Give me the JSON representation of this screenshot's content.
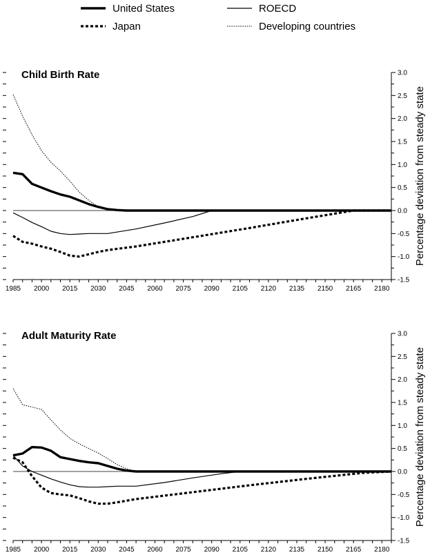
{
  "legend": {
    "items": [
      {
        "label": "United States",
        "style": "thick"
      },
      {
        "label": "ROECD",
        "style": "thin"
      },
      {
        "label": "Japan",
        "style": "thickdash"
      },
      {
        "label": "Developing countries",
        "style": "dotted"
      }
    ]
  },
  "chart_data": [
    {
      "type": "line",
      "title": "Child Birth Rate",
      "ylabel": "Percentage deviation from steady state",
      "xlim": [
        1985,
        2185
      ],
      "ylim": [
        -1.5,
        3.0
      ],
      "x_ticks": [
        1985,
        2000,
        2015,
        2030,
        2045,
        2060,
        2075,
        2090,
        2105,
        2120,
        2135,
        2150,
        2165,
        2180
      ],
      "y_ticks": [
        -1.5,
        -1.0,
        -0.5,
        0.0,
        0.5,
        1.0,
        1.5,
        2.0,
        2.5,
        3.0
      ],
      "y_tick_labels": [
        "-1.5",
        "-1.0",
        "-0.5",
        "0.0",
        "0.5",
        "1.0",
        "1.5",
        "2.0",
        "2.5",
        "3.0"
      ],
      "grid": false,
      "series": [
        {
          "name": "United States",
          "style": "thick",
          "x": [
            1985,
            1990,
            1995,
            2000,
            2005,
            2010,
            2015,
            2020,
            2025,
            2030,
            2035,
            2040,
            2045,
            2185
          ],
          "y": [
            0.82,
            0.79,
            0.58,
            0.5,
            0.42,
            0.35,
            0.3,
            0.22,
            0.14,
            0.08,
            0.03,
            0.01,
            0.0,
            0.0
          ]
        },
        {
          "name": "ROECD",
          "style": "thin",
          "x": [
            1985,
            1990,
            1995,
            2000,
            2005,
            2010,
            2015,
            2020,
            2025,
            2030,
            2035,
            2050,
            2065,
            2080,
            2090,
            2185
          ],
          "y": [
            -0.05,
            -0.15,
            -0.26,
            -0.35,
            -0.45,
            -0.5,
            -0.52,
            -0.51,
            -0.5,
            -0.5,
            -0.5,
            -0.4,
            -0.27,
            -0.13,
            0.0,
            0.0
          ]
        },
        {
          "name": "Japan",
          "style": "thickdash",
          "x": [
            1985,
            1990,
            1995,
            2000,
            2005,
            2010,
            2015,
            2020,
            2025,
            2030,
            2035,
            2050,
            2080,
            2110,
            2140,
            2165,
            2185
          ],
          "y": [
            -0.55,
            -0.68,
            -0.72,
            -0.78,
            -0.83,
            -0.9,
            -0.98,
            -1.0,
            -0.95,
            -0.9,
            -0.86,
            -0.78,
            -0.58,
            -0.38,
            -0.17,
            0.0,
            0.0
          ]
        },
        {
          "name": "Developing countries",
          "style": "dotted",
          "x": [
            1985,
            1990,
            1995,
            2000,
            2005,
            2010,
            2015,
            2020,
            2025,
            2030,
            2035,
            2185
          ],
          "y": [
            2.52,
            2.05,
            1.65,
            1.3,
            1.05,
            0.86,
            0.64,
            0.4,
            0.22,
            0.08,
            0.01,
            0.0
          ]
        }
      ]
    },
    {
      "type": "line",
      "title": "Adult Maturity Rate",
      "ylabel": "Percentage deviation from steady state",
      "xlim": [
        1985,
        2185
      ],
      "ylim": [
        -1.5,
        3.0
      ],
      "x_ticks": [
        1985,
        2000,
        2015,
        2030,
        2045,
        2060,
        2075,
        2090,
        2105,
        2120,
        2135,
        2150,
        2165,
        2180
      ],
      "y_ticks": [
        -1.5,
        -1.0,
        -0.5,
        0.0,
        0.5,
        1.0,
        1.5,
        2.0,
        2.5,
        3.0
      ],
      "y_tick_labels": [
        "-1.5",
        "-1.0",
        "-0.5",
        "0.0",
        "0.5",
        "1.0",
        "1.5",
        "2.0",
        "2.5",
        "3.0"
      ],
      "grid": false,
      "series": [
        {
          "name": "United States",
          "style": "thick",
          "x": [
            1985,
            1990,
            1995,
            2000,
            2005,
            2010,
            2015,
            2020,
            2025,
            2030,
            2035,
            2040,
            2045,
            2050,
            2185
          ],
          "y": [
            0.35,
            0.39,
            0.53,
            0.52,
            0.45,
            0.31,
            0.27,
            0.23,
            0.2,
            0.18,
            0.12,
            0.06,
            0.02,
            0.0,
            0.0
          ]
        },
        {
          "name": "ROECD",
          "style": "thin",
          "x": [
            1985,
            1990,
            1995,
            2000,
            2005,
            2010,
            2015,
            2020,
            2025,
            2030,
            2035,
            2040,
            2045,
            2050,
            2065,
            2080,
            2095,
            2105,
            2185
          ],
          "y": [
            0.35,
            0.12,
            0.0,
            -0.08,
            -0.16,
            -0.23,
            -0.29,
            -0.33,
            -0.34,
            -0.34,
            -0.33,
            -0.32,
            -0.32,
            -0.32,
            -0.24,
            -0.14,
            -0.05,
            0.0,
            0.0
          ]
        },
        {
          "name": "Japan",
          "style": "thickdash",
          "x": [
            1985,
            1990,
            1995,
            2000,
            2005,
            2010,
            2015,
            2020,
            2025,
            2030,
            2035,
            2040,
            2050,
            2080,
            2110,
            2140,
            2170,
            2185
          ],
          "y": [
            0.3,
            0.2,
            -0.1,
            -0.35,
            -0.47,
            -0.5,
            -0.52,
            -0.58,
            -0.65,
            -0.7,
            -0.7,
            -0.67,
            -0.6,
            -0.45,
            -0.3,
            -0.16,
            -0.03,
            0.0
          ]
        },
        {
          "name": "Developing countries",
          "style": "dotted",
          "x": [
            1985,
            1990,
            1995,
            2000,
            2005,
            2010,
            2015,
            2020,
            2025,
            2030,
            2035,
            2040,
            2045,
            2050,
            2185
          ],
          "y": [
            1.8,
            1.45,
            1.4,
            1.35,
            1.12,
            0.9,
            0.72,
            0.6,
            0.5,
            0.4,
            0.28,
            0.15,
            0.06,
            0.0,
            0.0
          ]
        }
      ]
    }
  ]
}
